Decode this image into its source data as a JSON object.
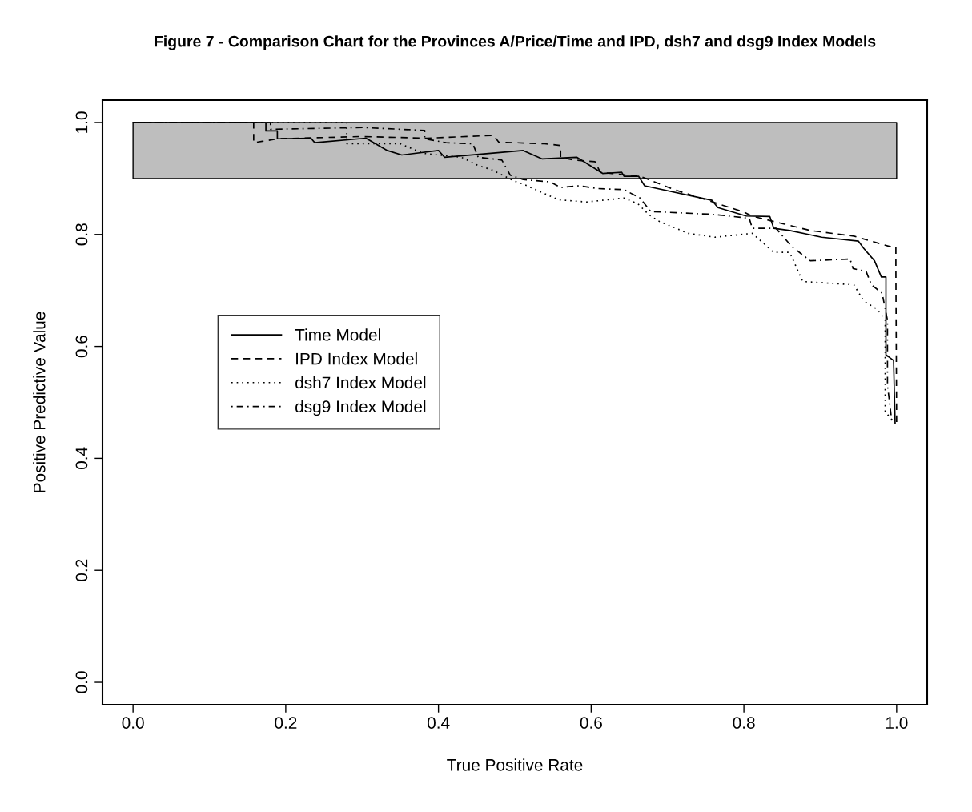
{
  "chart_data": {
    "type": "line",
    "title": "Figure 7 - Comparison Chart for the Provinces A/Price/Time and IPD, dsh7 and dsg9 Index Models",
    "xlabel": "True Positive Rate",
    "ylabel": "Positive Predictive Value",
    "xlim": [
      -0.04,
      1.04
    ],
    "ylim": [
      -0.04,
      1.04
    ],
    "xticks": [
      {
        "value": 0,
        "label": "0.0"
      },
      0.2,
      0.4,
      0.6,
      0.8,
      {
        "value": 1,
        "label": "1.0"
      }
    ],
    "yticks": [
      {
        "value": 0,
        "label": "0.0"
      },
      0.2,
      0.4,
      0.6,
      0.8,
      {
        "value": 1,
        "label": "1.0"
      }
    ],
    "grid": false,
    "legend": "left",
    "marker": "none",
    "bands": [
      {
        "axis": "y",
        "from": 0.9,
        "to": 1.0,
        "color": "#bebebe"
      }
    ],
    "series": [
      {
        "name": "Time Model",
        "color": "#000000",
        "line_style": "solid",
        "x": [
          0,
          0.174,
          0.174,
          0.189,
          0.189,
          0.233,
          0.238,
          0.305,
          0.333,
          0.352,
          0.4,
          0.408,
          0.511,
          0.536,
          0.581,
          0.615,
          0.64,
          0.643,
          0.662,
          0.67,
          0.758,
          0.766,
          0.803,
          0.834,
          0.839,
          0.86,
          0.902,
          0.95,
          0.957,
          0.971,
          0.98,
          0.986,
          0.986,
          0.996,
          0.998
        ],
        "values": [
          1.0,
          1.0,
          0.985,
          0.985,
          0.971,
          0.972,
          0.964,
          0.972,
          0.95,
          0.942,
          0.95,
          0.938,
          0.95,
          0.935,
          0.938,
          0.909,
          0.911,
          0.904,
          0.904,
          0.887,
          0.861,
          0.848,
          0.833,
          0.832,
          0.811,
          0.807,
          0.795,
          0.788,
          0.775,
          0.753,
          0.724,
          0.724,
          0.585,
          0.575,
          0.463
        ]
      },
      {
        "name": "IPD Index Model",
        "color": "#000000",
        "line_style": "dashed",
        "x": [
          0,
          0.158,
          0.158,
          0.19,
          0.299,
          0.385,
          0.472,
          0.479,
          0.539,
          0.56,
          0.56,
          0.577,
          0.605,
          0.612,
          0.64,
          0.664,
          0.709,
          0.8,
          0.81,
          0.887,
          0.944,
          0.992,
          0.999,
          0.999,
          1.0
        ],
        "values": [
          1.0,
          1.0,
          0.964,
          0.971,
          0.975,
          0.972,
          0.977,
          0.965,
          0.962,
          0.959,
          0.938,
          0.933,
          0.93,
          0.911,
          0.907,
          0.904,
          0.88,
          0.84,
          0.833,
          0.807,
          0.797,
          0.778,
          0.778,
          0.74,
          0.46
        ]
      },
      {
        "name": "dsh7 Index Model",
        "color": "#000000",
        "line_style": "dotted",
        "x": [
          0,
          0.28,
          0.28,
          0.35,
          0.38,
          0.43,
          0.452,
          0.469,
          0.5,
          0.511,
          0.557,
          0.594,
          0.643,
          0.661,
          0.675,
          0.688,
          0.727,
          0.762,
          0.811,
          0.839,
          0.86,
          0.877,
          0.944,
          0.957,
          0.975,
          0.985,
          0.985,
          0.985,
          0.994
        ],
        "values": [
          1.0,
          1.0,
          0.962,
          0.962,
          0.945,
          0.938,
          0.923,
          0.916,
          0.895,
          0.89,
          0.862,
          0.858,
          0.865,
          0.855,
          0.836,
          0.824,
          0.802,
          0.795,
          0.802,
          0.768,
          0.768,
          0.716,
          0.71,
          0.681,
          0.666,
          0.647,
          0.614,
          0.483,
          0.469
        ]
      },
      {
        "name": "dsg9 Index Model",
        "color": "#000000",
        "line_style": "dashdot",
        "x": [
          0,
          0.18,
          0.18,
          0.301,
          0.382,
          0.382,
          0.41,
          0.445,
          0.452,
          0.483,
          0.494,
          0.511,
          0.546,
          0.56,
          0.584,
          0.609,
          0.643,
          0.664,
          0.678,
          0.758,
          0.807,
          0.811,
          0.842,
          0.863,
          0.887,
          0.939,
          0.943,
          0.96,
          0.967,
          0.981,
          0.988,
          0.988,
          0.994
        ],
        "values": [
          1.0,
          1.0,
          0.988,
          0.991,
          0.986,
          0.971,
          0.964,
          0.962,
          0.938,
          0.933,
          0.906,
          0.898,
          0.894,
          0.884,
          0.887,
          0.882,
          0.88,
          0.865,
          0.841,
          0.836,
          0.829,
          0.811,
          0.811,
          0.778,
          0.753,
          0.756,
          0.739,
          0.734,
          0.71,
          0.695,
          0.647,
          0.531,
          0.463
        ]
      }
    ]
  }
}
